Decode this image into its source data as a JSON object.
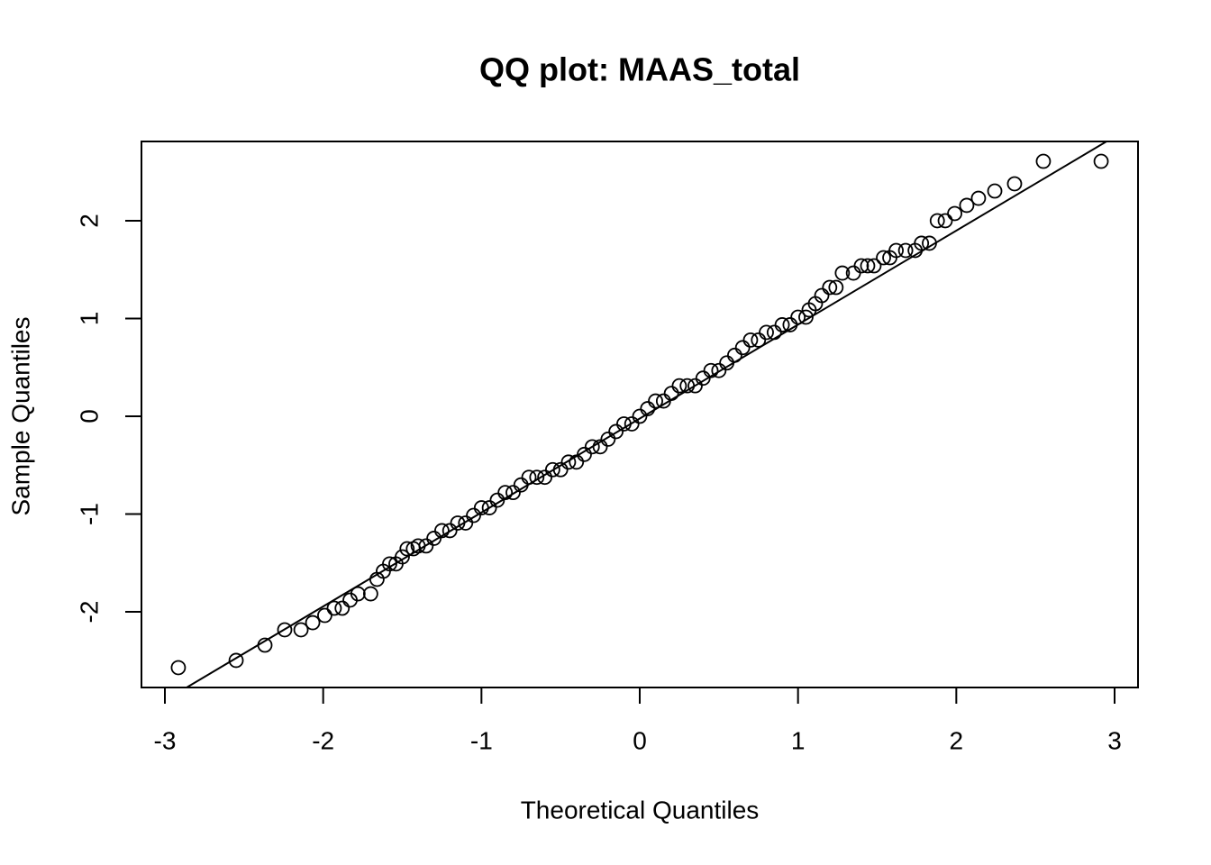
{
  "chart_data": {
    "type": "scatter",
    "title": "QQ plot: MAAS_total",
    "x_label": "Theoretical Quantiles",
    "y_label": "Sample Quantiles",
    "xlim": [
      -3.148,
      3.148
    ],
    "ylim": [
      -2.774,
      2.811
    ],
    "xticks": [
      -3,
      -2,
      -1,
      0,
      1,
      2,
      3
    ],
    "yticks": [
      -2,
      -1,
      0,
      1,
      2
    ],
    "color": "#000000",
    "reference_line": {
      "slope": 0.961,
      "intercept": -0.023
    },
    "series": [
      {
        "name": "MAAS_total",
        "x": [
          -2.915,
          -2.55,
          -2.368,
          -2.243,
          -2.14,
          -2.066,
          -1.99,
          -1.93,
          -1.88,
          -1.83,
          -1.78,
          -1.7,
          -1.66,
          -1.62,
          -1.58,
          -1.54,
          -1.5,
          -1.47,
          -1.43,
          -1.4,
          -1.35,
          -1.3,
          -1.25,
          -1.2,
          -1.15,
          -1.1,
          -1.05,
          -1.0,
          -0.95,
          -0.9,
          -0.85,
          -0.8,
          -0.75,
          -0.7,
          -0.65,
          -0.6,
          -0.55,
          -0.5,
          -0.45,
          -0.4,
          -0.35,
          -0.3,
          -0.25,
          -0.2,
          -0.15,
          -0.1,
          -0.05,
          0.0,
          0.05,
          0.1,
          0.15,
          0.2,
          0.25,
          0.3,
          0.35,
          0.4,
          0.45,
          0.5,
          0.55,
          0.6,
          0.65,
          0.7,
          0.75,
          0.8,
          0.85,
          0.9,
          0.95,
          1.0,
          1.05,
          1.07,
          1.11,
          1.15,
          1.2,
          1.24,
          1.28,
          1.35,
          1.4,
          1.44,
          1.48,
          1.54,
          1.58,
          1.62,
          1.68,
          1.74,
          1.78,
          1.83,
          1.88,
          1.93,
          1.99,
          2.066,
          2.14,
          2.243,
          2.368,
          2.55,
          2.915
        ],
        "values": [
          -2.571,
          -2.497,
          -2.341,
          -2.184,
          -2.184,
          -2.111,
          -2.037,
          -1.963,
          -1.963,
          -1.88,
          -1.816,
          -1.816,
          -1.668,
          -1.585,
          -1.51,
          -1.51,
          -1.438,
          -1.355,
          -1.355,
          -1.326,
          -1.326,
          -1.248,
          -1.17,
          -1.17,
          -1.092,
          -1.092,
          -1.014,
          -0.936,
          -0.936,
          -0.858,
          -0.78,
          -0.78,
          -0.702,
          -0.624,
          -0.624,
          -0.624,
          -0.546,
          -0.546,
          -0.468,
          -0.468,
          -0.39,
          -0.312,
          -0.312,
          -0.234,
          -0.156,
          -0.078,
          -0.078,
          0,
          0.078,
          0.156,
          0.156,
          0.234,
          0.312,
          0.312,
          0.312,
          0.39,
          0.468,
          0.468,
          0.546,
          0.624,
          0.702,
          0.78,
          0.78,
          0.858,
          0.858,
          0.936,
          0.936,
          1.014,
          1.014,
          1.088,
          1.152,
          1.235,
          1.318,
          1.318,
          1.465,
          1.465,
          1.539,
          1.539,
          1.539,
          1.622,
          1.622,
          1.696,
          1.696,
          1.696,
          1.77,
          1.77,
          2.0,
          2.0,
          2.074,
          2.157,
          2.23,
          2.304,
          2.378,
          2.608,
          2.608
        ]
      }
    ]
  }
}
